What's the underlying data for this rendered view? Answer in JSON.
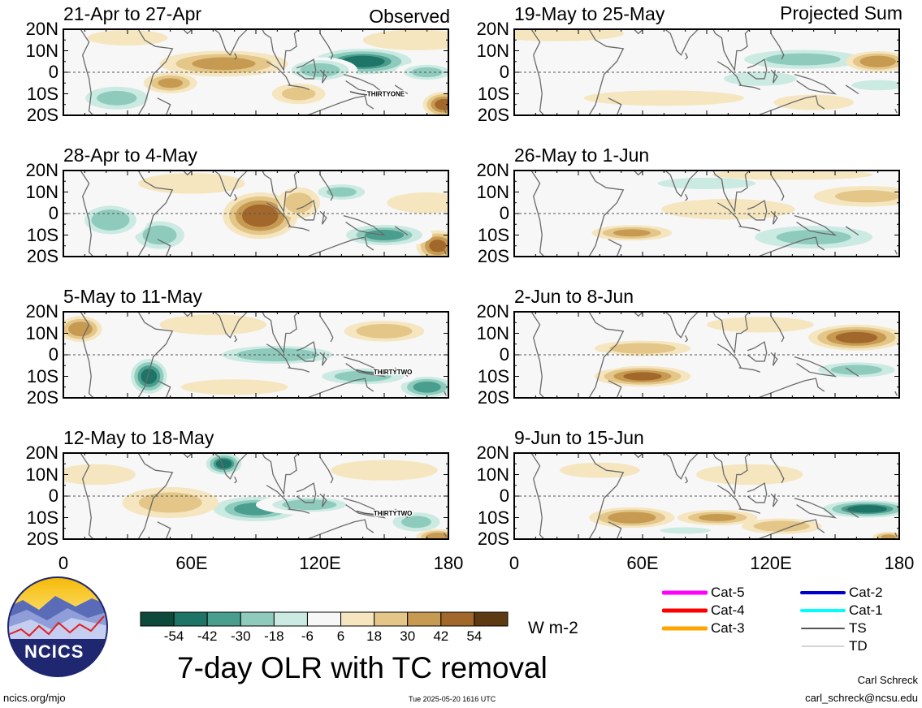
{
  "title": "7-day OLR with TC removal",
  "units": "W m-2",
  "observed_label": "Observed",
  "projected_label": "Projected Sum",
  "logo_text": "NCICS",
  "footer": {
    "site": "ncics.org/mjo",
    "timestamp": "Tue 2025-05-20 1616 UTC",
    "author": "Carl Schreck",
    "email": "carl_schreck@ncsu.edu"
  },
  "colors": {
    "neg54": "#0d4a3c",
    "neg42": "#1e7466",
    "neg30": "#4a9e8e",
    "neg18": "#8fcbbd",
    "neg6": "#cbeae2",
    "zero": "#f7f7f7",
    "pos6": "#f5e6c0",
    "pos18": "#e3c688",
    "pos30": "#c79a52",
    "pos42": "#a2672a",
    "pos54": "#5e3a12",
    "cat5": "#ff00ff",
    "cat4": "#ff0000",
    "cat3": "#ffa500",
    "cat2": "#0000cd",
    "cat1": "#00ffff",
    "ts": "#555555",
    "td": "#aaaaaa"
  },
  "legend_tc": [
    {
      "label": "Cat-5",
      "color_key": "cat5",
      "width": 5
    },
    {
      "label": "Cat-4",
      "color_key": "cat4",
      "width": 5
    },
    {
      "label": "Cat-3",
      "color_key": "cat3",
      "width": 5
    },
    {
      "label": "Cat-2",
      "color_key": "cat2",
      "width": 4
    },
    {
      "label": "Cat-1",
      "color_key": "cat1",
      "width": 4
    },
    {
      "label": "TS",
      "color_key": "ts",
      "width": 2
    },
    {
      "label": "TD",
      "color_key": "td",
      "width": 1
    }
  ],
  "chart_data": {
    "type": "heatmap",
    "variable": "7-day OLR anomaly with TC removal",
    "units": "W m-2",
    "colorbar_ticks": [
      -54,
      -42,
      -30,
      -18,
      -6,
      6,
      18,
      30,
      42,
      54
    ],
    "colorbar_classes": [
      "neg54",
      "neg42",
      "neg30",
      "neg18",
      "neg6",
      "zero",
      "pos6",
      "pos18",
      "pos30",
      "pos42",
      "pos54"
    ],
    "lat_labels": [
      "20N",
      "10N",
      "0",
      "10S",
      "20S"
    ],
    "lon_labels": [
      "0",
      "60E",
      "120E",
      "180"
    ],
    "lat_range": [
      -20,
      20
    ],
    "lon_range": [
      0,
      180
    ],
    "panels": [
      {
        "column": "Observed",
        "title": "21-Apr to 27-Apr",
        "storms": [
          {
            "name": "THIRTYONE",
            "lon": 142,
            "lat": -10
          }
        ],
        "features": [
          {
            "lon": 140,
            "lat": 5,
            "w": 22,
            "h": 6,
            "value": -50
          },
          {
            "lon": 120,
            "lat": 1,
            "w": 14,
            "h": 5,
            "value": -35
          },
          {
            "lon": 170,
            "lat": 0,
            "w": 12,
            "h": 4,
            "value": -28
          },
          {
            "lon": 25,
            "lat": -12,
            "w": 16,
            "h": 6,
            "value": -30
          },
          {
            "lon": 10,
            "lat": 12,
            "w": 10,
            "h": 4,
            "value": -10
          },
          {
            "lon": 75,
            "lat": 4,
            "w": 24,
            "h": 5,
            "value": 32
          },
          {
            "lon": 50,
            "lat": -5,
            "w": 10,
            "h": 4,
            "value": 30
          },
          {
            "lon": 110,
            "lat": -10,
            "w": 10,
            "h": 4,
            "value": 20
          },
          {
            "lon": 178,
            "lat": -15,
            "w": 8,
            "h": 5,
            "value": 45
          },
          {
            "lon": 165,
            "lat": 15,
            "w": 20,
            "h": 4,
            "value": 14
          },
          {
            "lon": 30,
            "lat": 16,
            "w": 15,
            "h": 3,
            "value": 16
          }
        ]
      },
      {
        "column": "Projected Sum",
        "title": "19-May to 25-May",
        "storms": [],
        "features": [
          {
            "lon": 135,
            "lat": 6,
            "w": 30,
            "h": 5,
            "value": -30
          },
          {
            "lon": 115,
            "lat": -3,
            "w": 20,
            "h": 4,
            "value": -14
          },
          {
            "lon": 170,
            "lat": -6,
            "w": 15,
            "h": 3,
            "value": -22
          },
          {
            "lon": 50,
            "lat": 10,
            "w": 25,
            "h": 3,
            "value": -8
          },
          {
            "lon": 170,
            "lat": 5,
            "w": 12,
            "h": 4,
            "value": 38
          },
          {
            "lon": 20,
            "lat": 18,
            "w": 25,
            "h": 3,
            "value": 16
          },
          {
            "lon": 70,
            "lat": -12,
            "w": 30,
            "h": 3,
            "value": 10
          },
          {
            "lon": 140,
            "lat": -14,
            "w": 15,
            "h": 3,
            "value": 10
          }
        ]
      },
      {
        "column": "Observed",
        "title": "28-Apr to 4-May",
        "storms": [],
        "features": [
          {
            "lon": 92,
            "lat": -1,
            "w": 14,
            "h": 9,
            "value": 50
          },
          {
            "lon": 175,
            "lat": -15,
            "w": 8,
            "h": 6,
            "value": 42
          },
          {
            "lon": 45,
            "lat": -10,
            "w": 12,
            "h": 7,
            "value": -35
          },
          {
            "lon": 22,
            "lat": -3,
            "w": 14,
            "h": 8,
            "value": -25
          },
          {
            "lon": 130,
            "lat": 10,
            "w": 12,
            "h": 4,
            "value": -30
          },
          {
            "lon": 150,
            "lat": -10,
            "w": 18,
            "h": 5,
            "value": -40
          },
          {
            "lon": 110,
            "lat": 5,
            "w": 8,
            "h": 6,
            "value": 22
          },
          {
            "lon": 60,
            "lat": 14,
            "w": 20,
            "h": 4,
            "value": 14
          },
          {
            "lon": 170,
            "lat": 5,
            "w": 15,
            "h": 4,
            "value": 14
          }
        ]
      },
      {
        "column": "Projected Sum",
        "title": "26-May to 1-Jun",
        "storms": [],
        "features": [
          {
            "lon": 140,
            "lat": -11,
            "w": 30,
            "h": 6,
            "value": -30
          },
          {
            "lon": 90,
            "lat": 14,
            "w": 25,
            "h": 3,
            "value": -12
          },
          {
            "lon": 30,
            "lat": -2,
            "w": 20,
            "h": 4,
            "value": -8
          },
          {
            "lon": 55,
            "lat": -9,
            "w": 15,
            "h": 3,
            "value": 30
          },
          {
            "lon": 100,
            "lat": 2,
            "w": 25,
            "h": 4,
            "value": 14
          },
          {
            "lon": 165,
            "lat": 8,
            "w": 20,
            "h": 4,
            "value": 18
          },
          {
            "lon": 130,
            "lat": 18,
            "w": 30,
            "h": 2,
            "value": 12
          }
        ]
      },
      {
        "column": "Observed",
        "title": "5-May to 11-May",
        "storms": [
          {
            "name": "THIRTYTWO",
            "lon": 145,
            "lat": -8
          }
        ],
        "features": [
          {
            "lon": 40,
            "lat": -10,
            "w": 8,
            "h": 8,
            "value": -55
          },
          {
            "lon": 100,
            "lat": 0,
            "w": 30,
            "h": 5,
            "value": -25
          },
          {
            "lon": 170,
            "lat": -15,
            "w": 12,
            "h": 5,
            "value": -45
          },
          {
            "lon": 140,
            "lat": -10,
            "w": 20,
            "h": 4,
            "value": -35
          },
          {
            "lon": 8,
            "lat": 12,
            "w": 8,
            "h": 5,
            "value": 38
          },
          {
            "lon": 150,
            "lat": 11,
            "w": 15,
            "h": 4,
            "value": 26
          },
          {
            "lon": 70,
            "lat": 14,
            "w": 20,
            "h": 4,
            "value": 14
          },
          {
            "lon": 80,
            "lat": -15,
            "w": 20,
            "h": 3,
            "value": 16
          }
        ]
      },
      {
        "column": "Projected Sum",
        "title": "2-Jun to 8-Jun",
        "storms": [],
        "features": [
          {
            "lon": 160,
            "lat": 8,
            "w": 18,
            "h": 5,
            "value": 45
          },
          {
            "lon": 60,
            "lat": -10,
            "w": 18,
            "h": 4,
            "value": 42
          },
          {
            "lon": 60,
            "lat": 3,
            "w": 18,
            "h": 3,
            "value": 25
          },
          {
            "lon": 160,
            "lat": -7,
            "w": 20,
            "h": 4,
            "value": -28
          },
          {
            "lon": 30,
            "lat": -3,
            "w": 20,
            "h": 4,
            "value": -10
          },
          {
            "lon": 115,
            "lat": 14,
            "w": 20,
            "h": 3,
            "value": 12
          },
          {
            "lon": 95,
            "lat": -16,
            "w": 20,
            "h": 2,
            "value": -8
          }
        ]
      },
      {
        "column": "Observed",
        "title": "12-May to 18-May",
        "storms": [
          {
            "name": "THIRTYTWO",
            "lon": 145,
            "lat": -8
          }
        ],
        "features": [
          {
            "lon": 75,
            "lat": 15,
            "w": 8,
            "h": 5,
            "value": -50
          },
          {
            "lon": 90,
            "lat": -6,
            "w": 20,
            "h": 6,
            "value": -40
          },
          {
            "lon": 115,
            "lat": -4,
            "w": 20,
            "h": 4,
            "value": -25
          },
          {
            "lon": 165,
            "lat": -12,
            "w": 12,
            "h": 5,
            "value": -30
          },
          {
            "lon": 50,
            "lat": -3,
            "w": 18,
            "h": 6,
            "value": 22
          },
          {
            "lon": 175,
            "lat": -19,
            "w": 8,
            "h": 3,
            "value": 38
          },
          {
            "lon": 150,
            "lat": 12,
            "w": 20,
            "h": 4,
            "value": 14
          },
          {
            "lon": 15,
            "lat": 10,
            "w": 15,
            "h": 4,
            "value": 14
          }
        ]
      },
      {
        "column": "Projected Sum",
        "title": "9-Jun to 15-Jun",
        "storms": [],
        "features": [
          {
            "lon": 165,
            "lat": -6,
            "w": 20,
            "h": 4,
            "value": -50
          },
          {
            "lon": 55,
            "lat": -10,
            "w": 16,
            "h": 4,
            "value": 38
          },
          {
            "lon": 95,
            "lat": -10,
            "w": 15,
            "h": 3,
            "value": 30
          },
          {
            "lon": 125,
            "lat": -14,
            "w": 15,
            "h": 3,
            "value": 26
          },
          {
            "lon": 80,
            "lat": -16,
            "w": 15,
            "h": 2,
            "value": -20
          },
          {
            "lon": 110,
            "lat": 10,
            "w": 20,
            "h": 4,
            "value": 14
          },
          {
            "lon": 175,
            "lat": -19,
            "w": 6,
            "h": 2,
            "value": 30
          },
          {
            "lon": 40,
            "lat": 12,
            "w": 15,
            "h": 3,
            "value": 12
          }
        ]
      }
    ]
  }
}
